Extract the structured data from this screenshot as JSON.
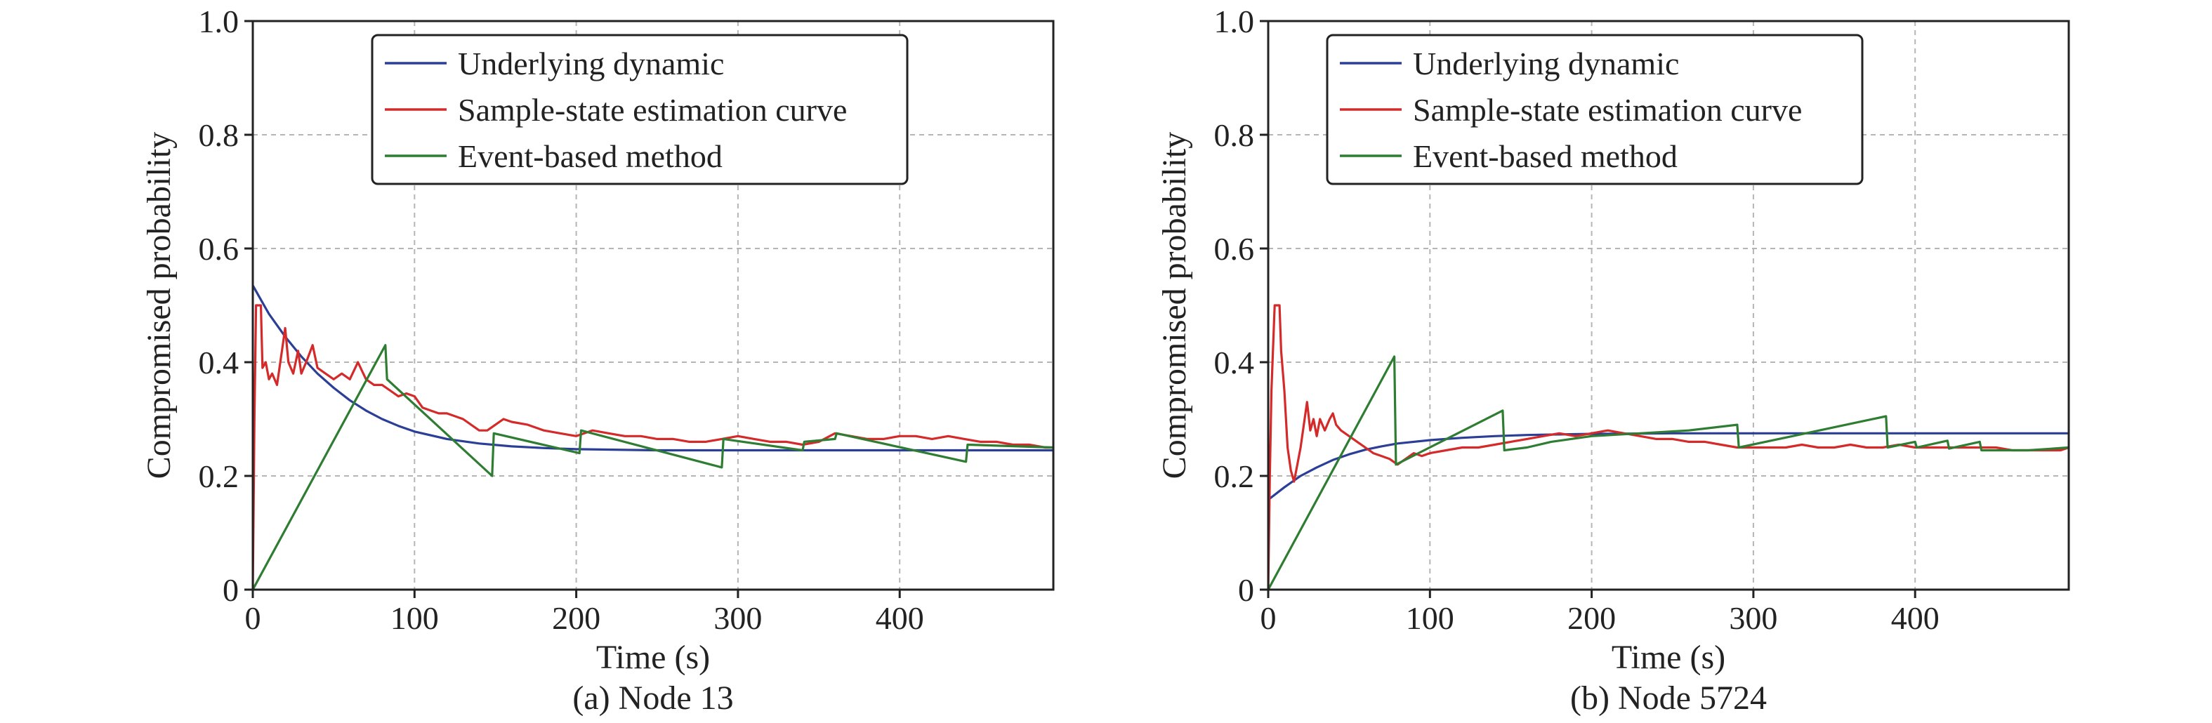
{
  "colors": {
    "underlying": "#2b3f96",
    "sample_state": "#d42a2a",
    "event_based": "#2e7d32",
    "grid": "#b5b5b5",
    "axis": "#222222"
  },
  "chart_data": [
    {
      "type": "line",
      "caption": "(a) Node 13",
      "xlabel": "Time (s)",
      "ylabel": "Compromised probability",
      "xlim": [
        0,
        495
      ],
      "ylim": [
        0,
        1.0
      ],
      "xticks": [
        0,
        100,
        200,
        300,
        400
      ],
      "xtick_labels": [
        "0",
        "100",
        "200",
        "300",
        "400"
      ],
      "yticks": [
        0,
        0.2,
        0.4,
        0.6,
        0.8,
        1.0
      ],
      "ytick_labels": [
        "0",
        "0.2",
        "0.4",
        "0.6",
        "0.8",
        "1.0"
      ],
      "grid": true,
      "legend_position": "top-center",
      "series": [
        {
          "name": "Underlying dynamic",
          "color": "#2b3f96",
          "x": [
            0,
            5,
            10,
            20,
            30,
            40,
            50,
            60,
            70,
            80,
            90,
            100,
            120,
            140,
            160,
            180,
            200,
            250,
            300,
            350,
            400,
            450,
            495
          ],
          "y": [
            0.535,
            0.51,
            0.485,
            0.445,
            0.41,
            0.38,
            0.355,
            0.333,
            0.315,
            0.3,
            0.288,
            0.278,
            0.265,
            0.257,
            0.252,
            0.249,
            0.247,
            0.245,
            0.245,
            0.245,
            0.245,
            0.245,
            0.245
          ]
        },
        {
          "name": "Sample-state estimation curve",
          "color": "#d42a2a",
          "x": [
            0,
            1,
            2,
            5,
            6,
            8,
            10,
            12,
            15,
            18,
            20,
            22,
            25,
            28,
            30,
            33,
            37,
            40,
            45,
            50,
            55,
            60,
            65,
            70,
            75,
            80,
            85,
            90,
            95,
            100,
            105,
            110,
            115,
            120,
            130,
            140,
            145,
            150,
            155,
            160,
            170,
            180,
            190,
            200,
            210,
            220,
            230,
            240,
            250,
            260,
            270,
            280,
            290,
            300,
            310,
            320,
            330,
            340,
            350,
            360,
            370,
            380,
            390,
            400,
            410,
            420,
            430,
            440,
            450,
            460,
            470,
            480,
            490,
            495
          ],
          "y": [
            0.0,
            0.3,
            0.5,
            0.5,
            0.39,
            0.4,
            0.37,
            0.38,
            0.36,
            0.42,
            0.46,
            0.4,
            0.38,
            0.42,
            0.38,
            0.4,
            0.43,
            0.39,
            0.38,
            0.37,
            0.38,
            0.37,
            0.4,
            0.37,
            0.36,
            0.36,
            0.35,
            0.34,
            0.345,
            0.34,
            0.32,
            0.315,
            0.31,
            0.31,
            0.3,
            0.28,
            0.28,
            0.29,
            0.3,
            0.295,
            0.29,
            0.28,
            0.275,
            0.27,
            0.28,
            0.275,
            0.27,
            0.27,
            0.265,
            0.265,
            0.26,
            0.26,
            0.265,
            0.27,
            0.265,
            0.26,
            0.26,
            0.255,
            0.26,
            0.275,
            0.27,
            0.265,
            0.265,
            0.27,
            0.27,
            0.265,
            0.27,
            0.265,
            0.26,
            0.26,
            0.255,
            0.255,
            0.25,
            0.25
          ]
        },
        {
          "name": "Event-based method",
          "color": "#2e7d32",
          "x": [
            0,
            82,
            83,
            148,
            149,
            202,
            203,
            290,
            291,
            340,
            341,
            360,
            361,
            441,
            442,
            495
          ],
          "y": [
            0.0,
            0.43,
            0.37,
            0.2,
            0.275,
            0.24,
            0.28,
            0.215,
            0.265,
            0.245,
            0.26,
            0.265,
            0.275,
            0.225,
            0.255,
            0.25
          ]
        }
      ]
    },
    {
      "type": "line",
      "caption": "(b) Node 5724",
      "xlabel": "Time (s)",
      "ylabel": "Compromised probability",
      "xlim": [
        0,
        495
      ],
      "ylim": [
        0,
        1.0
      ],
      "xticks": [
        0,
        100,
        200,
        300,
        400
      ],
      "xtick_labels": [
        "0",
        "100",
        "200",
        "300",
        "400"
      ],
      "yticks": [
        0,
        0.2,
        0.4,
        0.6,
        0.8,
        1.0
      ],
      "ytick_labels": [
        "0",
        "0.2",
        "0.4",
        "0.6",
        "0.8",
        "1.0"
      ],
      "grid": true,
      "legend_position": "top-center",
      "series": [
        {
          "name": "Underlying dynamic",
          "color": "#2b3f96",
          "x": [
            0,
            10,
            20,
            30,
            40,
            50,
            60,
            70,
            80,
            100,
            120,
            140,
            160,
            180,
            200,
            250,
            300,
            350,
            400,
            450,
            495
          ],
          "y": [
            0.158,
            0.18,
            0.2,
            0.215,
            0.228,
            0.238,
            0.246,
            0.252,
            0.257,
            0.263,
            0.267,
            0.27,
            0.272,
            0.273,
            0.274,
            0.275,
            0.275,
            0.275,
            0.275,
            0.275,
            0.275
          ]
        },
        {
          "name": "Sample-state estimation curve",
          "color": "#d42a2a",
          "x": [
            0,
            1,
            2,
            4,
            5,
            6,
            7,
            8,
            10,
            12,
            14,
            16,
            18,
            20,
            22,
            24,
            26,
            28,
            30,
            32,
            35,
            38,
            40,
            42,
            45,
            50,
            55,
            60,
            65,
            70,
            75,
            80,
            85,
            90,
            95,
            100,
            110,
            120,
            130,
            140,
            150,
            160,
            170,
            180,
            190,
            200,
            210,
            220,
            230,
            240,
            250,
            260,
            270,
            280,
            290,
            300,
            310,
            320,
            330,
            340,
            350,
            360,
            370,
            380,
            390,
            400,
            410,
            420,
            430,
            440,
            450,
            460,
            470,
            480,
            490,
            495
          ],
          "y": [
            0.0,
            0.2,
            0.35,
            0.5,
            0.5,
            0.5,
            0.5,
            0.42,
            0.35,
            0.25,
            0.21,
            0.19,
            0.22,
            0.25,
            0.29,
            0.33,
            0.28,
            0.3,
            0.27,
            0.3,
            0.28,
            0.3,
            0.31,
            0.29,
            0.28,
            0.27,
            0.26,
            0.25,
            0.24,
            0.235,
            0.23,
            0.22,
            0.23,
            0.24,
            0.235,
            0.24,
            0.245,
            0.25,
            0.25,
            0.255,
            0.26,
            0.265,
            0.27,
            0.275,
            0.27,
            0.275,
            0.28,
            0.275,
            0.27,
            0.265,
            0.265,
            0.26,
            0.26,
            0.255,
            0.25,
            0.25,
            0.25,
            0.25,
            0.255,
            0.25,
            0.25,
            0.255,
            0.25,
            0.25,
            0.255,
            0.25,
            0.25,
            0.25,
            0.25,
            0.25,
            0.25,
            0.245,
            0.245,
            0.245,
            0.245,
            0.25
          ]
        },
        {
          "name": "Event-based method",
          "color": "#2e7d32",
          "x": [
            0,
            78,
            79,
            145,
            146,
            160,
            175,
            200,
            230,
            260,
            290,
            291,
            382,
            383,
            400,
            401,
            420,
            421,
            440,
            441,
            470,
            495
          ],
          "y": [
            0.0,
            0.41,
            0.22,
            0.315,
            0.245,
            0.25,
            0.26,
            0.27,
            0.275,
            0.28,
            0.29,
            0.25,
            0.305,
            0.25,
            0.26,
            0.25,
            0.262,
            0.248,
            0.26,
            0.245,
            0.245,
            0.25
          ]
        }
      ]
    }
  ]
}
